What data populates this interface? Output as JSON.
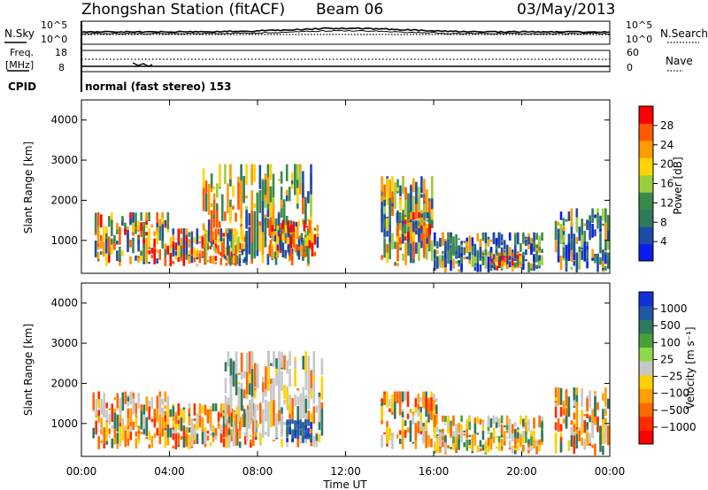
{
  "header": {
    "station": "Zhongshan Station (fitACF)",
    "beam": "Beam 06",
    "date": "03/May/2013"
  },
  "sky_panel": {
    "left_label": "N.Sky",
    "right_label": "N.Search",
    "left_ticks": [
      "10^5",
      "10^0"
    ],
    "right_ticks": [
      "10^5",
      "10^0"
    ]
  },
  "freq_panel": {
    "left_label_line1": "Freq.",
    "left_label_line2": "[MHz]",
    "left_ticks": [
      "18",
      "8"
    ],
    "right_label": "Nave",
    "right_ticks": [
      "60",
      "0"
    ]
  },
  "cpid": {
    "label": "CPID",
    "mode_text": "normal (fast stereo) 153"
  },
  "x_axis": {
    "label": "Time UT",
    "ticks": [
      "00:00",
      "04:00",
      "08:00",
      "12:00",
      "16:00",
      "20:00",
      "00:00"
    ]
  },
  "y_axis": {
    "label": "Slant Range [km]",
    "ticks": [
      "1000",
      "2000",
      "3000",
      "4000"
    ]
  },
  "colorbars": {
    "power": {
      "label": "Power [dB]",
      "ticks": [
        "4",
        "8",
        "12",
        "16",
        "20",
        "24",
        "28"
      ],
      "colors": [
        "#0b1de8",
        "#1f4ba8",
        "#2f7a5e",
        "#3a8a4a",
        "#9ccd3c",
        "#ffd400",
        "#ff9a00",
        "#ff5a00",
        "#ff0000"
      ]
    },
    "velocity": {
      "label": "Velocity [m s⁻¹]",
      "ticks": [
        "1000",
        "500",
        "100",
        "25",
        "−25",
        "−100",
        "−500",
        "−1000"
      ],
      "colors": [
        "#1330d8",
        "#2157a7",
        "#2f7860",
        "#4aa038",
        "#8fd84a",
        "#c7c7c7",
        "#ffd000",
        "#ff9f00",
        "#ff6a00",
        "#ff2a00",
        "#ff0000"
      ]
    }
  },
  "chart_data": {
    "type": "heatmap",
    "x_range_hours": [
      0,
      24
    ],
    "y_range_km": [
      180,
      4500
    ],
    "power_panel": {
      "title": "Power [dB]",
      "blobs": [
        {
          "t0": 0.6,
          "t1": 4.0,
          "r0": 350,
          "r1": 1700,
          "level": "high"
        },
        {
          "t0": 4.0,
          "t1": 7.5,
          "r0": 350,
          "r1": 1300,
          "level": "high"
        },
        {
          "t0": 5.5,
          "t1": 10.5,
          "r0": 350,
          "r1": 2900,
          "level": "mid"
        },
        {
          "t0": 8.5,
          "t1": 10.8,
          "r0": 500,
          "r1": 1500,
          "level": "high"
        },
        {
          "t0": 13.6,
          "t1": 16.0,
          "r0": 350,
          "r1": 2600,
          "level": "mid"
        },
        {
          "t0": 14.3,
          "t1": 15.9,
          "r0": 900,
          "r1": 1700,
          "level": "high"
        },
        {
          "t0": 16.0,
          "t1": 21.0,
          "r0": 200,
          "r1": 1200,
          "level": "low"
        },
        {
          "t0": 18.6,
          "t1": 20.0,
          "r0": 250,
          "r1": 700,
          "level": "high"
        },
        {
          "t0": 21.5,
          "t1": 24.0,
          "r0": 200,
          "r1": 1800,
          "level": "low"
        }
      ]
    },
    "velocity_panel": {
      "title": "Velocity [m s-1]",
      "blobs": [
        {
          "t0": 0.5,
          "t1": 4.0,
          "r0": 350,
          "r1": 1800,
          "sign": "negative"
        },
        {
          "t0": 4.0,
          "t1": 8.0,
          "r0": 350,
          "r1": 1500,
          "sign": "negative"
        },
        {
          "t0": 6.5,
          "t1": 11.0,
          "r0": 400,
          "r1": 2800,
          "sign": "near-zero"
        },
        {
          "t0": 9.3,
          "t1": 10.5,
          "r0": 500,
          "r1": 1100,
          "sign": "positive"
        },
        {
          "t0": 13.6,
          "t1": 16.2,
          "r0": 350,
          "r1": 1800,
          "sign": "negative"
        },
        {
          "t0": 16.0,
          "t1": 21.0,
          "r0": 200,
          "r1": 1200,
          "sign": "mixed"
        },
        {
          "t0": 21.5,
          "t1": 24.0,
          "r0": 200,
          "r1": 1900,
          "sign": "negative"
        }
      ]
    }
  }
}
